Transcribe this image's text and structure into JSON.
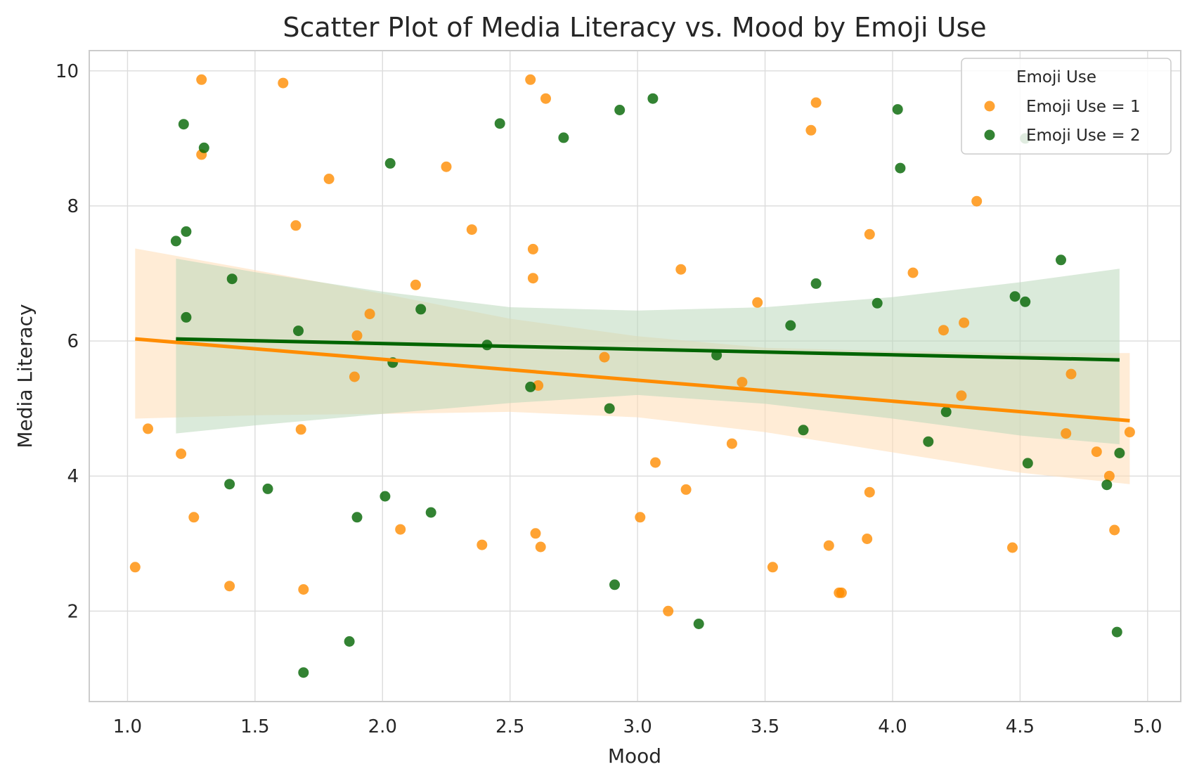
{
  "chart_data": {
    "type": "scatter",
    "title": "Scatter Plot of Media Literacy vs. Mood by Emoji Use",
    "xlabel": "Mood",
    "ylabel": "Media Literacy",
    "xlim": [
      0.85,
      5.13
    ],
    "ylim": [
      0.66,
      10.3
    ],
    "xticks": [
      1.0,
      1.5,
      2.0,
      2.5,
      3.0,
      3.5,
      4.0,
      4.5,
      5.0
    ],
    "xtick_labels": [
      "1.0",
      "1.5",
      "2.0",
      "2.5",
      "3.0",
      "3.5",
      "4.0",
      "4.5",
      "5.0"
    ],
    "yticks": [
      2,
      4,
      6,
      8,
      10
    ],
    "ytick_labels": [
      "2",
      "4",
      "6",
      "8",
      "10"
    ],
    "grid": true,
    "legend": {
      "title": "Emoji Use",
      "position": "top-right"
    },
    "series": [
      {
        "name": "Emoji Use = 1",
        "color": "#ff8c00",
        "band_color": "#ffdcb4",
        "regression": {
          "x": [
            1.03,
            4.93
          ],
          "y": [
            6.03,
            4.82
          ]
        },
        "ci_band": {
          "x": [
            1.03,
            1.5,
            2.0,
            2.5,
            3.0,
            3.5,
            4.0,
            4.5,
            4.93
          ],
          "upper": [
            7.37,
            7.05,
            6.7,
            6.33,
            6.07,
            5.9,
            5.85,
            5.82,
            5.82
          ],
          "lower": [
            4.85,
            4.9,
            4.92,
            4.95,
            4.87,
            4.65,
            4.35,
            4.05,
            3.88
          ]
        },
        "points": [
          {
            "x": 1.03,
            "y": 2.65
          },
          {
            "x": 1.08,
            "y": 4.7
          },
          {
            "x": 1.21,
            "y": 4.33
          },
          {
            "x": 1.26,
            "y": 3.39
          },
          {
            "x": 1.29,
            "y": 9.87
          },
          {
            "x": 1.29,
            "y": 8.76
          },
          {
            "x": 1.4,
            "y": 2.37
          },
          {
            "x": 1.61,
            "y": 9.82
          },
          {
            "x": 1.66,
            "y": 7.71
          },
          {
            "x": 1.68,
            "y": 4.69
          },
          {
            "x": 1.69,
            "y": 2.32
          },
          {
            "x": 1.79,
            "y": 8.4
          },
          {
            "x": 1.89,
            "y": 5.47
          },
          {
            "x": 1.9,
            "y": 6.08
          },
          {
            "x": 1.95,
            "y": 6.4
          },
          {
            "x": 2.07,
            "y": 3.21
          },
          {
            "x": 2.13,
            "y": 6.83
          },
          {
            "x": 2.25,
            "y": 8.58
          },
          {
            "x": 2.35,
            "y": 7.65
          },
          {
            "x": 2.39,
            "y": 2.98
          },
          {
            "x": 2.58,
            "y": 9.87
          },
          {
            "x": 2.59,
            "y": 7.36
          },
          {
            "x": 2.59,
            "y": 6.93
          },
          {
            "x": 2.6,
            "y": 3.15
          },
          {
            "x": 2.61,
            "y": 5.34
          },
          {
            "x": 2.62,
            "y": 2.95
          },
          {
            "x": 2.64,
            "y": 9.59
          },
          {
            "x": 2.87,
            "y": 5.76
          },
          {
            "x": 3.01,
            "y": 3.39
          },
          {
            "x": 3.07,
            "y": 4.2
          },
          {
            "x": 3.12,
            "y": 2.0
          },
          {
            "x": 3.17,
            "y": 7.06
          },
          {
            "x": 3.19,
            "y": 3.8
          },
          {
            "x": 3.37,
            "y": 4.48
          },
          {
            "x": 3.41,
            "y": 5.39
          },
          {
            "x": 3.47,
            "y": 6.57
          },
          {
            "x": 3.53,
            "y": 2.65
          },
          {
            "x": 3.68,
            "y": 9.12
          },
          {
            "x": 3.7,
            "y": 9.53
          },
          {
            "x": 3.75,
            "y": 2.97
          },
          {
            "x": 3.79,
            "y": 2.27
          },
          {
            "x": 3.8,
            "y": 2.27
          },
          {
            "x": 3.9,
            "y": 3.07
          },
          {
            "x": 3.91,
            "y": 7.58
          },
          {
            "x": 3.91,
            "y": 3.76
          },
          {
            "x": 4.08,
            "y": 7.01
          },
          {
            "x": 4.2,
            "y": 6.16
          },
          {
            "x": 4.27,
            "y": 5.19
          },
          {
            "x": 4.28,
            "y": 6.27
          },
          {
            "x": 4.33,
            "y": 8.07
          },
          {
            "x": 4.47,
            "y": 2.94
          },
          {
            "x": 4.68,
            "y": 4.63
          },
          {
            "x": 4.7,
            "y": 5.51
          },
          {
            "x": 4.8,
            "y": 4.36
          },
          {
            "x": 4.85,
            "y": 4.0
          },
          {
            "x": 4.87,
            "y": 3.2
          },
          {
            "x": 4.93,
            "y": 4.65
          }
        ]
      },
      {
        "name": "Emoji Use = 2",
        "color": "#006400",
        "band_color": "#bcd9bc",
        "regression": {
          "x": [
            1.19,
            4.89
          ],
          "y": [
            6.03,
            5.72
          ]
        },
        "ci_band": {
          "x": [
            1.19,
            1.5,
            2.0,
            2.5,
            3.0,
            3.5,
            4.0,
            4.5,
            4.89
          ],
          "upper": [
            7.22,
            7.02,
            6.73,
            6.5,
            6.45,
            6.5,
            6.65,
            6.87,
            7.07
          ],
          "lower": [
            4.63,
            4.75,
            4.92,
            5.08,
            5.2,
            5.07,
            4.85,
            4.6,
            4.47
          ]
        },
        "points": [
          {
            "x": 1.19,
            "y": 7.48
          },
          {
            "x": 1.22,
            "y": 9.21
          },
          {
            "x": 1.23,
            "y": 7.62
          },
          {
            "x": 1.23,
            "y": 6.35
          },
          {
            "x": 1.3,
            "y": 8.86
          },
          {
            "x": 1.4,
            "y": 3.88
          },
          {
            "x": 1.41,
            "y": 6.92
          },
          {
            "x": 1.55,
            "y": 3.81
          },
          {
            "x": 1.67,
            "y": 6.15
          },
          {
            "x": 1.69,
            "y": 1.09
          },
          {
            "x": 1.87,
            "y": 1.55
          },
          {
            "x": 1.9,
            "y": 3.39
          },
          {
            "x": 2.01,
            "y": 3.7
          },
          {
            "x": 2.03,
            "y": 8.63
          },
          {
            "x": 2.04,
            "y": 5.68
          },
          {
            "x": 2.15,
            "y": 6.47
          },
          {
            "x": 2.19,
            "y": 3.46
          },
          {
            "x": 2.41,
            "y": 5.94
          },
          {
            "x": 2.46,
            "y": 9.22
          },
          {
            "x": 2.58,
            "y": 5.32
          },
          {
            "x": 2.71,
            "y": 9.01
          },
          {
            "x": 2.89,
            "y": 5.0
          },
          {
            "x": 2.91,
            "y": 2.39
          },
          {
            "x": 2.93,
            "y": 9.42
          },
          {
            "x": 3.06,
            "y": 9.59
          },
          {
            "x": 3.24,
            "y": 1.81
          },
          {
            "x": 3.31,
            "y": 5.79
          },
          {
            "x": 3.6,
            "y": 6.23
          },
          {
            "x": 3.65,
            "y": 4.68
          },
          {
            "x": 3.7,
            "y": 6.85
          },
          {
            "x": 3.94,
            "y": 6.56
          },
          {
            "x": 4.02,
            "y": 9.43
          },
          {
            "x": 4.03,
            "y": 8.56
          },
          {
            "x": 4.14,
            "y": 4.51
          },
          {
            "x": 4.21,
            "y": 4.95
          },
          {
            "x": 4.48,
            "y": 6.66
          },
          {
            "x": 4.52,
            "y": 6.58
          },
          {
            "x": 4.52,
            "y": 9.0
          },
          {
            "x": 4.53,
            "y": 4.19
          },
          {
            "x": 4.66,
            "y": 7.2
          },
          {
            "x": 4.84,
            "y": 3.87
          },
          {
            "x": 4.88,
            "y": 1.69
          },
          {
            "x": 4.89,
            "y": 4.34
          }
        ]
      }
    ]
  }
}
